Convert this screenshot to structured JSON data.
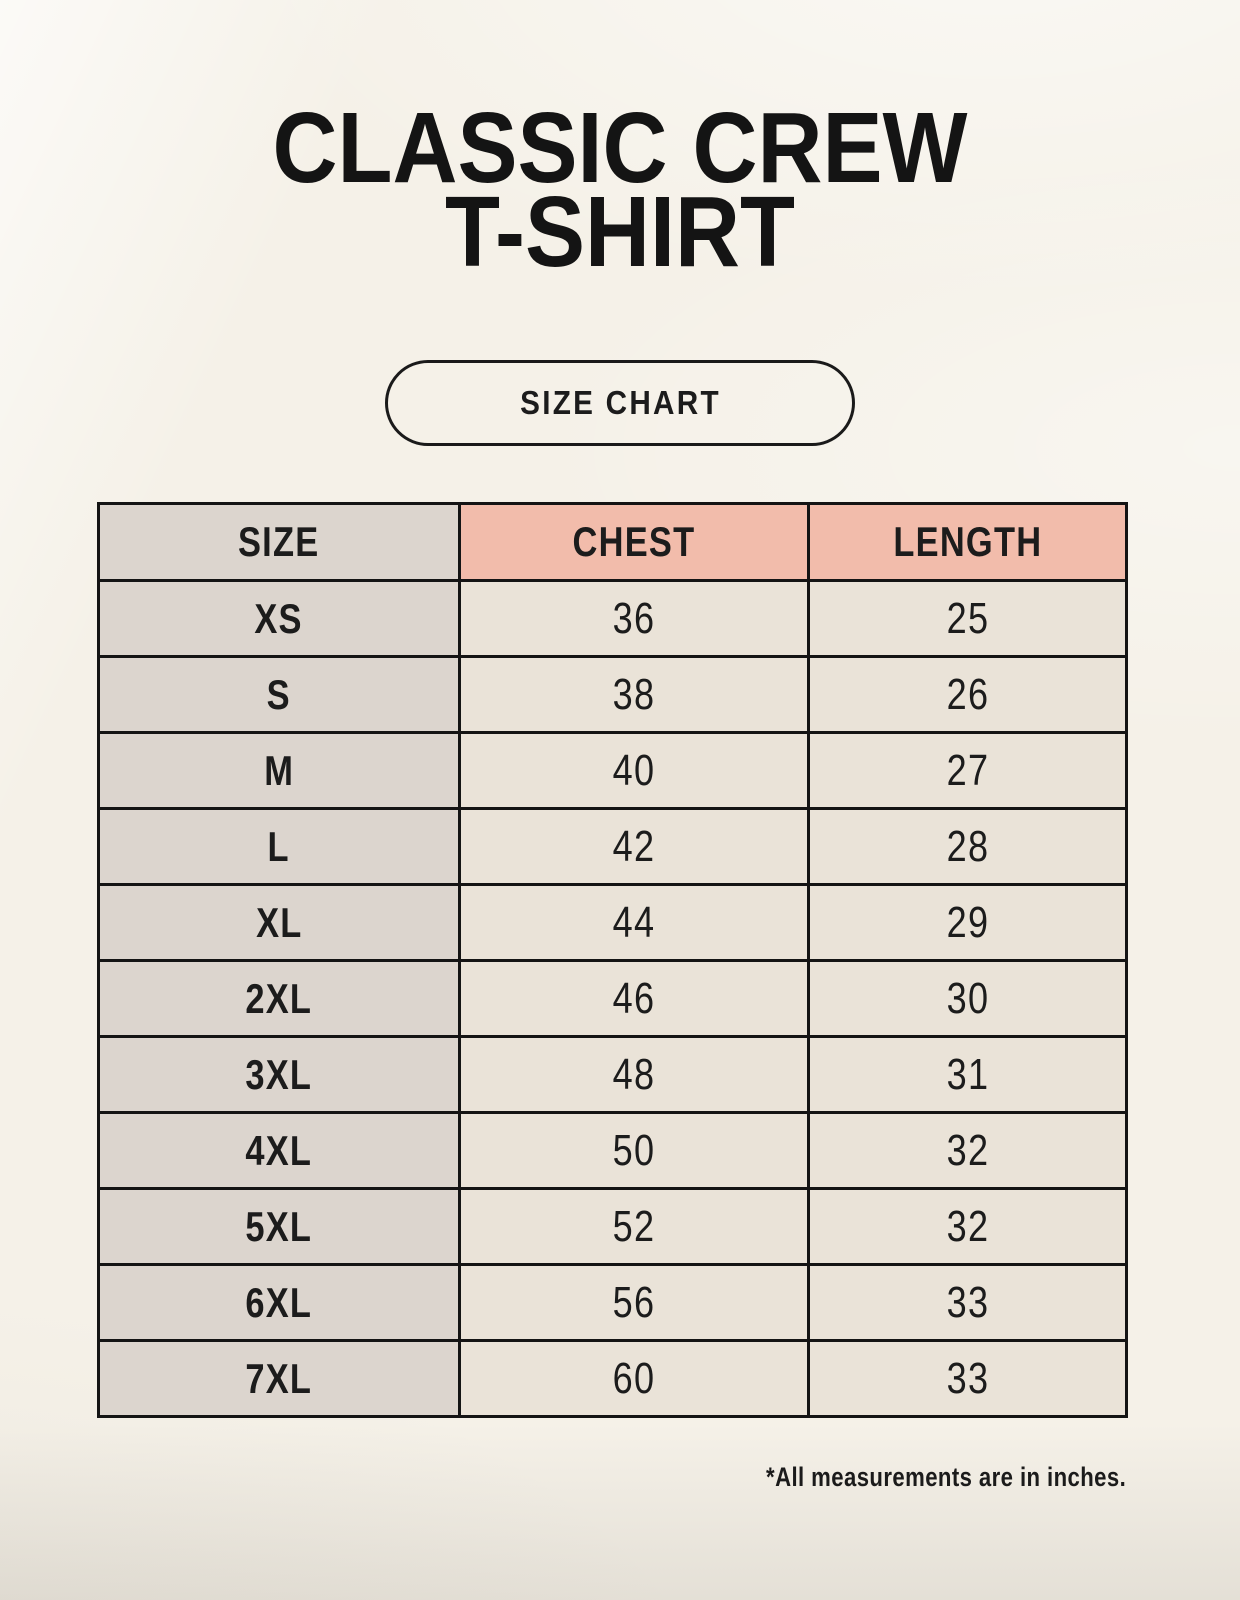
{
  "page": {
    "title_line1": "CLASSIC CREW",
    "title_line2": "T-SHIRT",
    "size_chart_badge": "SIZE CHART",
    "footnote": "*All measurements are in inches."
  },
  "colors": {
    "background": "#f5f1e8",
    "header_accent": "#f2bcab",
    "size_column_bg": "#dcd5ce",
    "data_cell_bg": "#eae3d8",
    "table_border": "#141414",
    "text": "#1c1c1c"
  },
  "chart_data": {
    "type": "table",
    "title": "CLASSIC CREW T-SHIRT",
    "subtitle": "SIZE CHART",
    "columns": [
      "SIZE",
      "CHEST",
      "LENGTH"
    ],
    "rows": [
      [
        "XS",
        "36",
        "25"
      ],
      [
        "S",
        "38",
        "26"
      ],
      [
        "M",
        "40",
        "27"
      ],
      [
        "L",
        "42",
        "28"
      ],
      [
        "XL",
        "44",
        "29"
      ],
      [
        "2XL",
        "46",
        "30"
      ],
      [
        "3XL",
        "48",
        "31"
      ],
      [
        "4XL",
        "50",
        "32"
      ],
      [
        "5XL",
        "52",
        "32"
      ],
      [
        "6XL",
        "56",
        "33"
      ],
      [
        "7XL",
        "60",
        "33"
      ]
    ],
    "units_note": "*All measurements are in inches."
  }
}
